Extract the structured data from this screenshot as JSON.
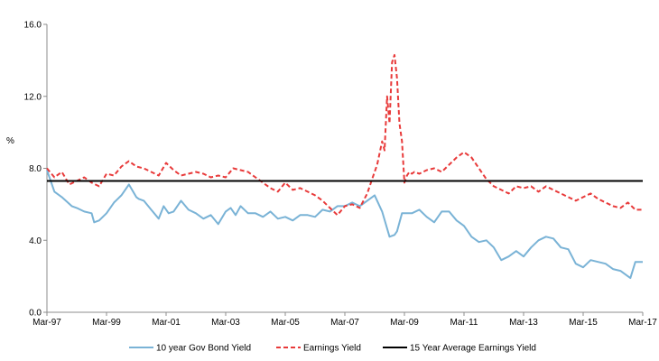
{
  "chart_data": {
    "type": "line",
    "ylabel": "%",
    "ylim": [
      0,
      16
    ],
    "yticks": [
      "0.0",
      "4.0",
      "8.0",
      "12.0",
      "16.0"
    ],
    "xlim": [
      "1997-03",
      "2017-03"
    ],
    "xticks": [
      "Mar-97",
      "Mar-99",
      "Mar-01",
      "Mar-03",
      "Mar-05",
      "Mar-07",
      "Mar-09",
      "Mar-11",
      "Mar-13",
      "Mar-15",
      "Mar-17"
    ],
    "grid": false,
    "legend_position": "bottom",
    "series": [
      {
        "name": "10 year Gov Bond Yield",
        "color": "#7ab3d6",
        "style": "solid",
        "x": [
          "1997-03",
          "1997-06",
          "1997-09",
          "1998-01",
          "1998-03",
          "1998-06",
          "1998-09",
          "1998-10",
          "1998-12",
          "1999-03",
          "1999-06",
          "1999-09",
          "1999-12",
          "2000-03",
          "2000-04",
          "2000-06",
          "2000-09",
          "2000-12",
          "2001-02",
          "2001-04",
          "2001-06",
          "2001-09",
          "2001-12",
          "2002-03",
          "2002-06",
          "2002-09",
          "2002-12",
          "2003-03",
          "2003-05",
          "2003-07",
          "2003-09",
          "2003-12",
          "2004-03",
          "2004-06",
          "2004-09",
          "2004-12",
          "2005-03",
          "2005-06",
          "2005-09",
          "2005-12",
          "2006-03",
          "2006-06",
          "2006-09",
          "2006-12",
          "2007-03",
          "2007-06",
          "2007-09",
          "2007-12",
          "2008-03",
          "2008-06",
          "2008-09",
          "2008-11",
          "2008-12",
          "2009-02",
          "2009-04",
          "2009-06",
          "2009-09",
          "2009-12",
          "2010-03",
          "2010-06",
          "2010-09",
          "2010-12",
          "2011-03",
          "2011-06",
          "2011-09",
          "2011-12",
          "2012-03",
          "2012-06",
          "2012-09",
          "2012-12",
          "2013-03",
          "2013-06",
          "2013-09",
          "2013-12",
          "2014-03",
          "2014-06",
          "2014-09",
          "2014-12",
          "2015-03",
          "2015-06",
          "2015-09",
          "2015-12",
          "2016-03",
          "2016-06",
          "2016-09",
          "2016-10",
          "2016-12",
          "2017-03"
        ],
        "y": [
          7.9,
          6.7,
          6.4,
          5.9,
          5.8,
          5.6,
          5.5,
          5.0,
          5.1,
          5.5,
          6.1,
          6.5,
          7.1,
          6.4,
          6.3,
          6.2,
          5.7,
          5.2,
          5.9,
          5.5,
          5.6,
          6.2,
          5.7,
          5.5,
          5.2,
          5.4,
          4.9,
          5.6,
          5.8,
          5.4,
          5.9,
          5.5,
          5.5,
          5.3,
          5.6,
          5.2,
          5.3,
          5.1,
          5.4,
          5.4,
          5.3,
          5.7,
          5.6,
          5.9,
          5.9,
          6.1,
          5.9,
          6.2,
          6.5,
          5.6,
          4.2,
          4.3,
          4.5,
          5.5,
          5.5,
          5.5,
          5.7,
          5.3,
          5.0,
          5.6,
          5.6,
          5.1,
          4.8,
          4.2,
          3.9,
          4.0,
          3.6,
          2.9,
          3.1,
          3.4,
          3.1,
          3.6,
          4.0,
          4.2,
          4.1,
          3.6,
          3.5,
          2.7,
          2.5,
          2.9,
          2.8,
          2.7,
          2.4,
          2.3,
          2.0,
          1.9,
          2.8,
          2.8
        ]
      },
      {
        "name": "Earnings Yield",
        "color": "#e83a3a",
        "style": "dashed",
        "x": [
          "1997-03",
          "1997-06",
          "1997-09",
          "1997-12",
          "1998-03",
          "1998-06",
          "1998-09",
          "1998-12",
          "1999-03",
          "1999-06",
          "1999-09",
          "1999-12",
          "2000-03",
          "2000-06",
          "2000-09",
          "2000-12",
          "2001-03",
          "2001-06",
          "2001-09",
          "2001-12",
          "2002-03",
          "2002-06",
          "2002-09",
          "2002-12",
          "2003-03",
          "2003-06",
          "2003-09",
          "2003-12",
          "2004-03",
          "2004-06",
          "2004-09",
          "2004-12",
          "2005-03",
          "2005-06",
          "2005-09",
          "2005-12",
          "2006-03",
          "2006-06",
          "2006-09",
          "2006-12",
          "2007-03",
          "2007-06",
          "2007-09",
          "2007-12",
          "2008-02",
          "2008-04",
          "2008-06",
          "2008-07",
          "2008-08",
          "2008-09",
          "2008-10",
          "2008-11",
          "2008-12",
          "2009-01",
          "2009-02",
          "2009-03",
          "2009-04",
          "2009-05",
          "2009-06",
          "2009-07",
          "2009-09",
          "2009-12",
          "2010-03",
          "2010-06",
          "2010-09",
          "2010-12",
          "2011-03",
          "2011-06",
          "2011-09",
          "2011-12",
          "2012-03",
          "2012-06",
          "2012-09",
          "2012-12",
          "2013-03",
          "2013-06",
          "2013-09",
          "2013-12",
          "2014-03",
          "2014-06",
          "2014-09",
          "2014-12",
          "2015-03",
          "2015-06",
          "2015-09",
          "2015-12",
          "2016-03",
          "2016-06",
          "2016-09",
          "2016-12",
          "2017-03"
        ],
        "y": [
          8.0,
          7.5,
          7.8,
          7.1,
          7.3,
          7.5,
          7.2,
          7.0,
          7.7,
          7.6,
          8.1,
          8.4,
          8.1,
          8.0,
          7.8,
          7.6,
          8.3,
          7.9,
          7.6,
          7.7,
          7.8,
          7.7,
          7.5,
          7.6,
          7.5,
          8.0,
          7.9,
          7.8,
          7.5,
          7.2,
          6.9,
          6.7,
          7.2,
          6.8,
          6.9,
          6.7,
          6.5,
          6.2,
          5.8,
          5.4,
          5.9,
          6.0,
          5.8,
          6.6,
          7.4,
          8.2,
          9.5,
          9.0,
          12.0,
          10.5,
          13.9,
          14.3,
          13.0,
          10.5,
          9.5,
          7.2,
          7.6,
          7.8,
          7.7,
          7.8,
          7.7,
          7.9,
          8.0,
          7.8,
          8.2,
          8.6,
          8.9,
          8.6,
          8.0,
          7.4,
          7.0,
          6.8,
          6.6,
          7.0,
          6.9,
          7.0,
          6.7,
          7.0,
          6.8,
          6.6,
          6.4,
          6.2,
          6.4,
          6.6,
          6.3,
          6.1,
          5.9,
          5.8,
          6.1,
          5.7,
          5.7
        ]
      },
      {
        "name": "15 Year Average Earnings Yield",
        "color": "#000000",
        "style": "solid",
        "x": [
          "1997-03",
          "2017-03"
        ],
        "y": [
          7.3,
          7.3
        ]
      }
    ]
  }
}
